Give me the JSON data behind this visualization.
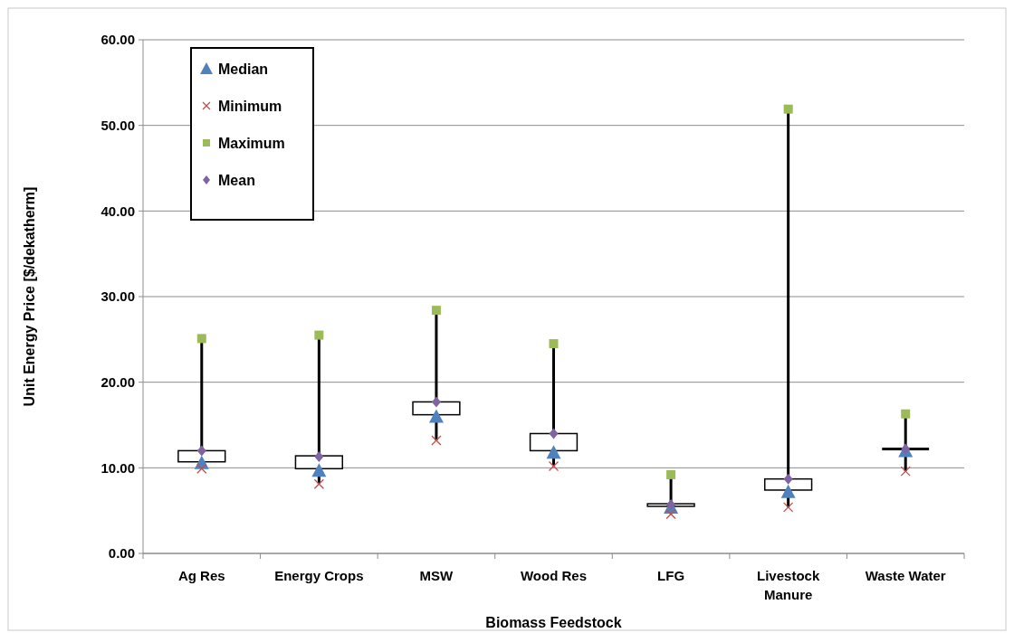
{
  "chart_data": {
    "type": "box",
    "xlabel": "Biomass Feedstock",
    "ylabel": "Unit Energy Price [$/dekatherm]",
    "categories": [
      "Ag Res",
      "Energy Crops",
      "MSW",
      "Wood Res",
      "LFG",
      "Livestock Manure",
      "Waste Water"
    ],
    "ylim": [
      0,
      60
    ],
    "yticks": [
      {
        "value": 0,
        "label": "0.00"
      },
      {
        "value": 10,
        "label": "10.00"
      },
      {
        "value": 20,
        "label": "20.00"
      },
      {
        "value": 30,
        "label": "30.00"
      },
      {
        "value": 40,
        "label": "40.00"
      },
      {
        "value": 50,
        "label": "50.00"
      },
      {
        "value": 60,
        "label": "60.00"
      }
    ],
    "grid": "y",
    "legend": "top left",
    "series": [
      {
        "type": "box",
        "color": "#000000",
        "boxes": [
          {
            "low": 9.9,
            "q1": 10.7,
            "q3": 12.0,
            "high": 25.1
          },
          {
            "low": 8.1,
            "q1": 9.9,
            "q3": 11.4,
            "high": 25.5
          },
          {
            "low": 13.2,
            "q1": 16.2,
            "q3": 17.7,
            "high": 28.4
          },
          {
            "low": 10.2,
            "q1": 12.0,
            "q3": 14.0,
            "high": 24.5
          },
          {
            "low": 4.6,
            "q1": 5.5,
            "q3": 5.8,
            "high": 9.2
          },
          {
            "low": 5.4,
            "q1": 7.4,
            "q3": 8.7,
            "high": 51.9
          },
          {
            "low": 9.6,
            "q1": 12.2,
            "q3": 12.2,
            "high": 16.3
          }
        ]
      },
      {
        "type": "scatter",
        "name": "Median",
        "color": "#4f81bd",
        "marker": "triangle",
        "values": [
          10.6,
          9.7,
          16.0,
          11.8,
          5.4,
          7.2,
          12.0
        ]
      },
      {
        "type": "scatter",
        "name": "Minimum",
        "color": "#c0504d",
        "marker": "cross",
        "values": [
          9.9,
          8.1,
          13.2,
          10.2,
          4.6,
          5.4,
          9.6
        ]
      },
      {
        "type": "scatter",
        "name": "Maximum",
        "color": "#9bbb59",
        "marker": "square",
        "values": [
          25.1,
          25.5,
          28.4,
          24.5,
          9.2,
          51.9,
          16.3
        ]
      },
      {
        "type": "scatter",
        "name": "Mean",
        "color": "#8064a2",
        "marker": "diamond",
        "values": [
          12.0,
          11.3,
          17.7,
          14.0,
          5.7,
          8.7,
          12.2
        ]
      }
    ]
  }
}
